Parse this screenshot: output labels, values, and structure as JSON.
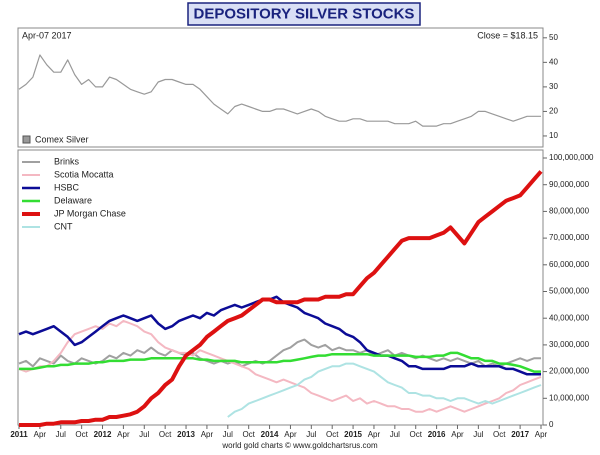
{
  "title": "DEPOSITORY SILVER STOCKS",
  "footer": "world gold charts © www.goldchartsrus.com",
  "chart_data": [
    {
      "type": "line",
      "date_label": "Apr-07 2017",
      "close_label": "Close = $18.15",
      "x": [
        "2011-01",
        "2011-02",
        "2011-03",
        "2011-04",
        "2011-05",
        "2011-06",
        "2011-07",
        "2011-08",
        "2011-09",
        "2011-10",
        "2011-11",
        "2011-12",
        "2012-01",
        "2012-02",
        "2012-03",
        "2012-04",
        "2012-05",
        "2012-06",
        "2012-07",
        "2012-08",
        "2012-09",
        "2012-10",
        "2012-11",
        "2012-12",
        "2013-01",
        "2013-02",
        "2013-03",
        "2013-04",
        "2013-05",
        "2013-06",
        "2013-07",
        "2013-08",
        "2013-09",
        "2013-10",
        "2013-11",
        "2013-12",
        "2014-01",
        "2014-02",
        "2014-03",
        "2014-04",
        "2014-05",
        "2014-06",
        "2014-07",
        "2014-08",
        "2014-09",
        "2014-10",
        "2014-11",
        "2014-12",
        "2015-01",
        "2015-02",
        "2015-03",
        "2015-04",
        "2015-05",
        "2015-06",
        "2015-07",
        "2015-08",
        "2015-09",
        "2015-10",
        "2015-11",
        "2015-12",
        "2016-01",
        "2016-02",
        "2016-03",
        "2016-04",
        "2016-05",
        "2016-06",
        "2016-07",
        "2016-08",
        "2016-09",
        "2016-10",
        "2016-11",
        "2016-12",
        "2017-01",
        "2017-02",
        "2017-03",
        "2017-04"
      ],
      "ylim": [
        5.5,
        54
      ],
      "yticks": [
        10,
        20,
        30,
        40,
        50
      ],
      "series": [
        {
          "name": "Comex Silver",
          "color": "#999999",
          "line_width": 1.2,
          "values": [
            29,
            31,
            34,
            43,
            39,
            36,
            36,
            41,
            35,
            31,
            33,
            30,
            30,
            34,
            33,
            31,
            29,
            28,
            27,
            28,
            32,
            33,
            33,
            32,
            31,
            31,
            29,
            26,
            23,
            21,
            19,
            22,
            23,
            22,
            21,
            20,
            20,
            21,
            21,
            20,
            19,
            20,
            21,
            20,
            18,
            17,
            16,
            16,
            17,
            17,
            16,
            16,
            16,
            16,
            15,
            15,
            15,
            16,
            14,
            14,
            14,
            15,
            15,
            16,
            17,
            18,
            20,
            20,
            19,
            18,
            17,
            16,
            17,
            18,
            18,
            18
          ]
        }
      ]
    },
    {
      "type": "line",
      "x": [
        "2011-01",
        "2011-02",
        "2011-03",
        "2011-04",
        "2011-05",
        "2011-06",
        "2011-07",
        "2011-08",
        "2011-09",
        "2011-10",
        "2011-11",
        "2011-12",
        "2012-01",
        "2012-02",
        "2012-03",
        "2012-04",
        "2012-05",
        "2012-06",
        "2012-07",
        "2012-08",
        "2012-09",
        "2012-10",
        "2012-11",
        "2012-12",
        "2013-01",
        "2013-02",
        "2013-03",
        "2013-04",
        "2013-05",
        "2013-06",
        "2013-07",
        "2013-08",
        "2013-09",
        "2013-10",
        "2013-11",
        "2013-12",
        "2014-01",
        "2014-02",
        "2014-03",
        "2014-04",
        "2014-05",
        "2014-06",
        "2014-07",
        "2014-08",
        "2014-09",
        "2014-10",
        "2014-11",
        "2014-12",
        "2015-01",
        "2015-02",
        "2015-03",
        "2015-04",
        "2015-05",
        "2015-06",
        "2015-07",
        "2015-08",
        "2015-09",
        "2015-10",
        "2015-11",
        "2015-12",
        "2016-01",
        "2016-02",
        "2016-03",
        "2016-04",
        "2016-05",
        "2016-06",
        "2016-07",
        "2016-08",
        "2016-09",
        "2016-10",
        "2016-11",
        "2016-12",
        "2017-01",
        "2017-02",
        "2017-03",
        "2017-04"
      ],
      "xticks": [
        {
          "value": "2011-01",
          "label": "2011"
        },
        {
          "value": "2011-04",
          "label": "Apr"
        },
        {
          "value": "2011-07",
          "label": "Jul"
        },
        {
          "value": "2011-10",
          "label": "Oct"
        },
        {
          "value": "2012-01",
          "label": "2012"
        },
        {
          "value": "2012-04",
          "label": "Apr"
        },
        {
          "value": "2012-07",
          "label": "Jul"
        },
        {
          "value": "2012-10",
          "label": "Oct"
        },
        {
          "value": "2013-01",
          "label": "2013"
        },
        {
          "value": "2013-04",
          "label": "Apr"
        },
        {
          "value": "2013-07",
          "label": "Jul"
        },
        {
          "value": "2013-10",
          "label": "Oct"
        },
        {
          "value": "2014-01",
          "label": "2014"
        },
        {
          "value": "2014-04",
          "label": "Apr"
        },
        {
          "value": "2014-07",
          "label": "Jul"
        },
        {
          "value": "2014-10",
          "label": "Oct"
        },
        {
          "value": "2015-01",
          "label": "2015"
        },
        {
          "value": "2015-04",
          "label": "Apr"
        },
        {
          "value": "2015-07",
          "label": "Jul"
        },
        {
          "value": "2015-10",
          "label": "Oct"
        },
        {
          "value": "2016-01",
          "label": "2016"
        },
        {
          "value": "2016-04",
          "label": "Apr"
        },
        {
          "value": "2016-07",
          "label": "Jul"
        },
        {
          "value": "2016-10",
          "label": "Oct"
        },
        {
          "value": "2017-01",
          "label": "2017"
        },
        {
          "value": "2017-04",
          "label": "Apr"
        }
      ],
      "ylim": [
        0,
        103000000
      ],
      "yticks": [
        0,
        {
          "value": 10000000,
          "label": "10,000,000"
        },
        {
          "value": 20000000,
          "label": "20,000,000"
        },
        {
          "value": 30000000,
          "label": "30,000,000"
        },
        {
          "value": 40000000,
          "label": "40,000,000"
        },
        {
          "value": 50000000,
          "label": "50,000,000"
        },
        {
          "value": 60000000,
          "label": "60,000,000"
        },
        {
          "value": 70000000,
          "label": "70,000,000"
        },
        {
          "value": 80000000,
          "label": "80,000,000"
        },
        {
          "value": 90000000,
          "label": "90,000,000"
        },
        {
          "value": 100000000,
          "label": "100,000,000"
        }
      ],
      "series": [
        {
          "name": "Brinks",
          "color": "#a0a0a0",
          "line_width": 2,
          "values": [
            23000000,
            24000000,
            22000000,
            25000000,
            24000000,
            23000000,
            26000000,
            24000000,
            23000000,
            25000000,
            24000000,
            23000000,
            24000000,
            26000000,
            25000000,
            27000000,
            26000000,
            28000000,
            27000000,
            29000000,
            27000000,
            26000000,
            28000000,
            27000000,
            26000000,
            27000000,
            25000000,
            24000000,
            23000000,
            24000000,
            23000000,
            24000000,
            22000000,
            23000000,
            24000000,
            23000000,
            24000000,
            26000000,
            28000000,
            29000000,
            31000000,
            32000000,
            30000000,
            29000000,
            30000000,
            28000000,
            29000000,
            28000000,
            28000000,
            27000000,
            28000000,
            26000000,
            27000000,
            28000000,
            26000000,
            27000000,
            26000000,
            25000000,
            26000000,
            25000000,
            24000000,
            25000000,
            24000000,
            25000000,
            24000000,
            23000000,
            24000000,
            22000000,
            23000000,
            22000000,
            23000000,
            24000000,
            25000000,
            24000000,
            25000000,
            25000000
          ]
        },
        {
          "name": "Scotia Mocatta",
          "color": "#f4b8c2",
          "line_width": 2,
          "values": [
            21000000,
            20000000,
            21000000,
            22000000,
            22000000,
            24000000,
            27000000,
            31000000,
            34000000,
            35000000,
            36000000,
            37000000,
            36000000,
            38000000,
            37000000,
            39000000,
            38000000,
            37000000,
            35000000,
            34000000,
            31000000,
            29000000,
            28000000,
            27000000,
            27000000,
            26000000,
            28000000,
            27000000,
            26000000,
            25000000,
            24000000,
            23000000,
            22000000,
            21000000,
            19000000,
            18000000,
            17000000,
            16000000,
            17000000,
            16000000,
            15000000,
            14000000,
            12000000,
            11000000,
            10000000,
            9000000,
            10000000,
            11000000,
            9000000,
            10000000,
            8000000,
            9000000,
            8000000,
            7000000,
            7000000,
            6000000,
            6000000,
            5000000,
            5000000,
            6000000,
            5000000,
            6000000,
            7000000,
            6000000,
            5000000,
            6000000,
            7000000,
            8000000,
            9000000,
            10000000,
            12000000,
            13000000,
            15000000,
            16000000,
            17000000,
            18000000
          ]
        },
        {
          "name": "HSBC",
          "color": "#0c0c96",
          "line_width": 2.5,
          "values": [
            34000000,
            35000000,
            34000000,
            35000000,
            36000000,
            37000000,
            35000000,
            33000000,
            30000000,
            31000000,
            33000000,
            35000000,
            37000000,
            39000000,
            40000000,
            41000000,
            40000000,
            39000000,
            40000000,
            41000000,
            38000000,
            36000000,
            37000000,
            39000000,
            40000000,
            41000000,
            40000000,
            42000000,
            41000000,
            43000000,
            44000000,
            45000000,
            44000000,
            45000000,
            46000000,
            47000000,
            47000000,
            48000000,
            46000000,
            45000000,
            44000000,
            42000000,
            41000000,
            40000000,
            38000000,
            37000000,
            36000000,
            34000000,
            33000000,
            31000000,
            28000000,
            27000000,
            26000000,
            26000000,
            25000000,
            24000000,
            22000000,
            22000000,
            21000000,
            21000000,
            21000000,
            21000000,
            22000000,
            22000000,
            22000000,
            23000000,
            22000000,
            22000000,
            22000000,
            22000000,
            21000000,
            21000000,
            20000000,
            19000000,
            19000000,
            19000000
          ]
        },
        {
          "name": "Delaware",
          "color": "#33dd33",
          "line_width": 2.5,
          "values": [
            21000000,
            21000000,
            21000000,
            21500000,
            22000000,
            22000000,
            22500000,
            22500000,
            23000000,
            23000000,
            23000000,
            23500000,
            23500000,
            24000000,
            24000000,
            24000000,
            24500000,
            24500000,
            24500000,
            25000000,
            25000000,
            25000000,
            25000000,
            25000000,
            25000000,
            25000000,
            24500000,
            24500000,
            24000000,
            24000000,
            24000000,
            24000000,
            23500000,
            23500000,
            23500000,
            23500000,
            23500000,
            23500000,
            24000000,
            24000000,
            24500000,
            25000000,
            25500000,
            26000000,
            26000000,
            26500000,
            26500000,
            26500000,
            26500000,
            26500000,
            26500000,
            26000000,
            26000000,
            26000000,
            26000000,
            26000000,
            26000000,
            25500000,
            25500000,
            25500000,
            26000000,
            26000000,
            27000000,
            27000000,
            26000000,
            25000000,
            25000000,
            24000000,
            24000000,
            23000000,
            23000000,
            22500000,
            22000000,
            21000000,
            20000000,
            20000000
          ]
        },
        {
          "name": "JP Morgan Chase",
          "color": "#dd1111",
          "line_width": 4,
          "values": [
            0,
            0,
            0,
            0,
            500000,
            500000,
            1000000,
            1000000,
            1000000,
            1500000,
            1500000,
            2000000,
            2000000,
            3000000,
            3000000,
            3500000,
            4000000,
            5000000,
            7000000,
            10000000,
            12000000,
            15000000,
            17000000,
            22000000,
            26000000,
            28000000,
            30000000,
            33000000,
            35000000,
            37000000,
            39000000,
            40000000,
            41000000,
            43000000,
            45000000,
            47000000,
            47000000,
            46000000,
            46000000,
            46000000,
            46000000,
            47000000,
            47000000,
            47000000,
            48000000,
            48000000,
            48000000,
            49000000,
            49000000,
            52000000,
            55000000,
            57000000,
            60000000,
            63000000,
            66000000,
            69000000,
            70000000,
            70000000,
            70000000,
            70000000,
            71000000,
            72000000,
            74000000,
            71000000,
            68000000,
            72000000,
            76000000,
            78000000,
            80000000,
            82000000,
            84000000,
            85000000,
            86000000,
            89000000,
            92000000,
            95000000
          ]
        },
        {
          "name": "CNT",
          "color": "#aee3e3",
          "line_width": 2,
          "values": [
            null,
            null,
            null,
            null,
            null,
            null,
            null,
            null,
            null,
            null,
            null,
            null,
            null,
            null,
            null,
            null,
            null,
            null,
            null,
            null,
            null,
            null,
            null,
            null,
            null,
            null,
            null,
            null,
            null,
            null,
            3000000,
            5000000,
            6000000,
            8000000,
            9000000,
            10000000,
            11000000,
            12000000,
            13000000,
            14000000,
            15000000,
            17000000,
            18000000,
            20000000,
            21000000,
            22000000,
            22000000,
            23000000,
            23000000,
            22000000,
            21000000,
            20000000,
            18000000,
            16000000,
            15000000,
            14000000,
            12000000,
            12000000,
            11000000,
            11000000,
            10000000,
            10000000,
            9000000,
            10000000,
            10000000,
            9000000,
            8000000,
            9000000,
            8000000,
            9000000,
            10000000,
            11000000,
            12000000,
            13000000,
            14000000,
            15000000
          ]
        }
      ]
    }
  ]
}
